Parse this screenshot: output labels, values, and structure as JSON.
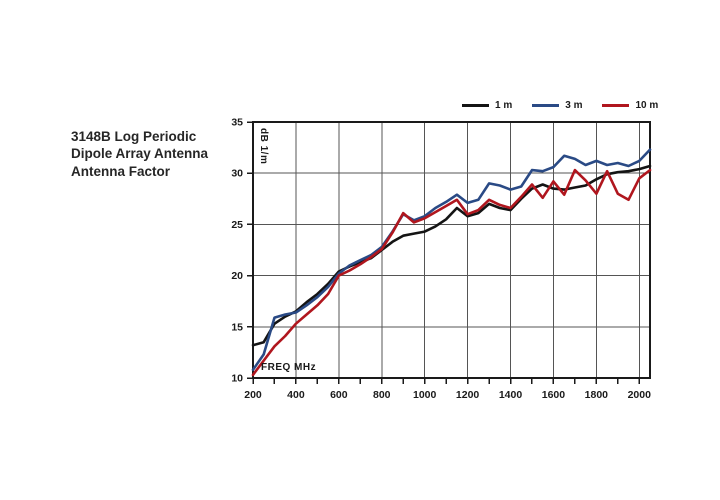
{
  "title": {
    "lines": [
      "3148B Log Periodic",
      "Dipole Array Antenna",
      "Antenna Factor"
    ]
  },
  "chart_data": {
    "type": "line",
    "title": "3148B Log Periodic Dipole Array Antenna Antenna Factor",
    "xlabel": "FREQ MHz",
    "ylabel": "dB 1/m",
    "xlim": [
      200,
      2050
    ],
    "ylim": [
      10,
      35
    ],
    "x_tick_labels": [
      200,
      400,
      600,
      800,
      1000,
      1200,
      1400,
      1600,
      1800,
      2000
    ],
    "x_minor_tick_step": 100,
    "y_ticks": [
      10,
      15,
      20,
      25,
      30,
      35
    ],
    "grid": true,
    "legend_position": "top-right",
    "axis_color": "#1a1a1a",
    "grid_color": "#555555",
    "x": [
      200,
      250,
      300,
      350,
      400,
      450,
      500,
      550,
      600,
      650,
      700,
      750,
      800,
      850,
      900,
      950,
      1000,
      1050,
      1100,
      1150,
      1200,
      1250,
      1300,
      1350,
      1400,
      1450,
      1500,
      1550,
      1600,
      1650,
      1700,
      1750,
      1800,
      1850,
      1900,
      1950,
      2000,
      2050
    ],
    "series": [
      {
        "name": "1 m",
        "color": "#141414",
        "values": [
          13.2,
          13.5,
          15.3,
          16.0,
          16.5,
          17.4,
          18.2,
          19.2,
          20.4,
          20.9,
          21.3,
          21.7,
          22.5,
          23.3,
          23.9,
          24.1,
          24.3,
          24.8,
          25.5,
          26.6,
          25.8,
          26.1,
          27.0,
          26.6,
          26.4,
          27.5,
          28.5,
          28.9,
          28.5,
          28.4,
          28.6,
          28.8,
          29.4,
          29.9,
          30.1,
          30.2,
          30.4,
          30.7
        ]
      },
      {
        "name": "3 m",
        "color": "#2a4a85",
        "values": [
          10.8,
          12.3,
          15.9,
          16.2,
          16.4,
          17.1,
          17.9,
          18.9,
          20.2,
          21.0,
          21.5,
          22.0,
          22.8,
          24.3,
          26.0,
          25.4,
          25.8,
          26.6,
          27.2,
          27.9,
          27.1,
          27.4,
          29.0,
          28.8,
          28.4,
          28.7,
          30.3,
          30.2,
          30.6,
          31.7,
          31.4,
          30.8,
          31.2,
          30.8,
          31.0,
          30.7,
          31.2,
          32.3
        ]
      },
      {
        "name": "10 m",
        "color": "#b0161e",
        "values": [
          10.3,
          11.7,
          13.1,
          14.1,
          15.3,
          16.2,
          17.1,
          18.2,
          20.0,
          20.5,
          21.1,
          21.8,
          22.6,
          24.2,
          26.1,
          25.2,
          25.6,
          26.2,
          26.8,
          27.4,
          26.0,
          26.4,
          27.4,
          26.9,
          26.6,
          27.7,
          28.9,
          27.6,
          29.2,
          27.9,
          30.3,
          29.3,
          28.0,
          30.2,
          28.0,
          27.4,
          29.5,
          30.3
        ]
      }
    ]
  }
}
